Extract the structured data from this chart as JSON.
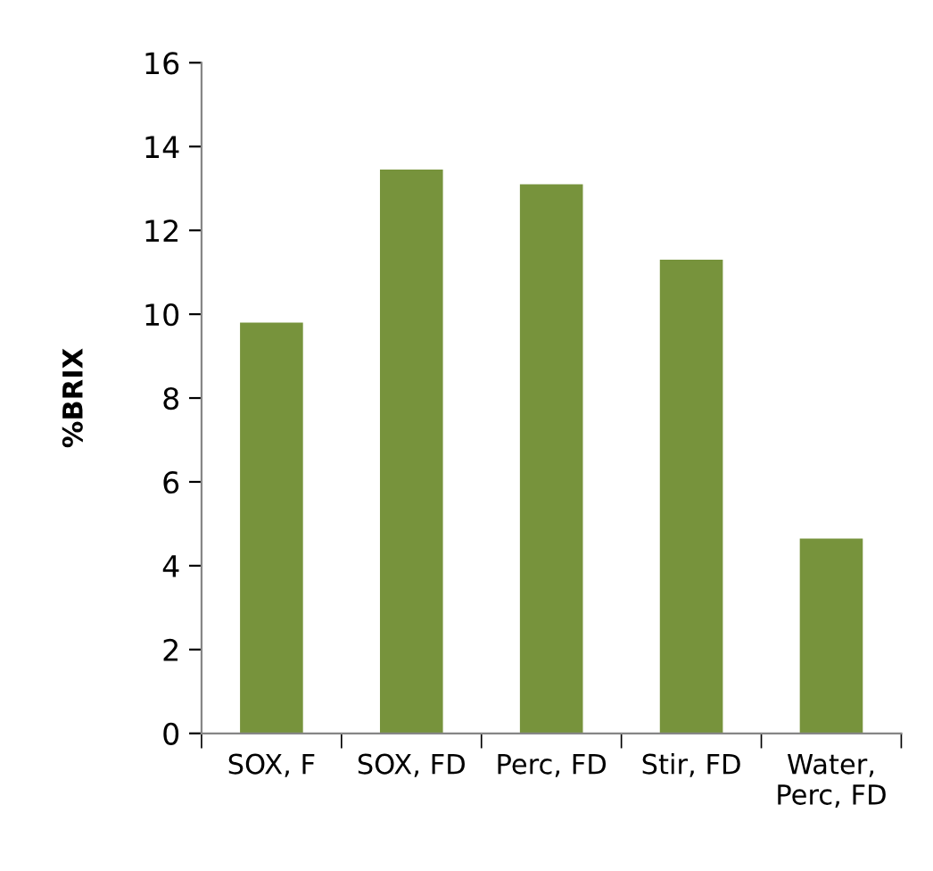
{
  "chart_data": {
    "type": "bar",
    "ylabel": "%BRIX",
    "categories": [
      "SOX, F",
      "SOX, FD",
      "Perc, FD",
      "Stir, FD",
      "Water,\nPerc, FD"
    ],
    "values": [
      9.8,
      13.45,
      13.1,
      11.3,
      4.65
    ],
    "color": "#77933c",
    "ylim": [
      0,
      16
    ],
    "yticks": [
      0,
      2,
      4,
      6,
      8,
      10,
      12,
      14,
      16
    ],
    "grid": false
  }
}
